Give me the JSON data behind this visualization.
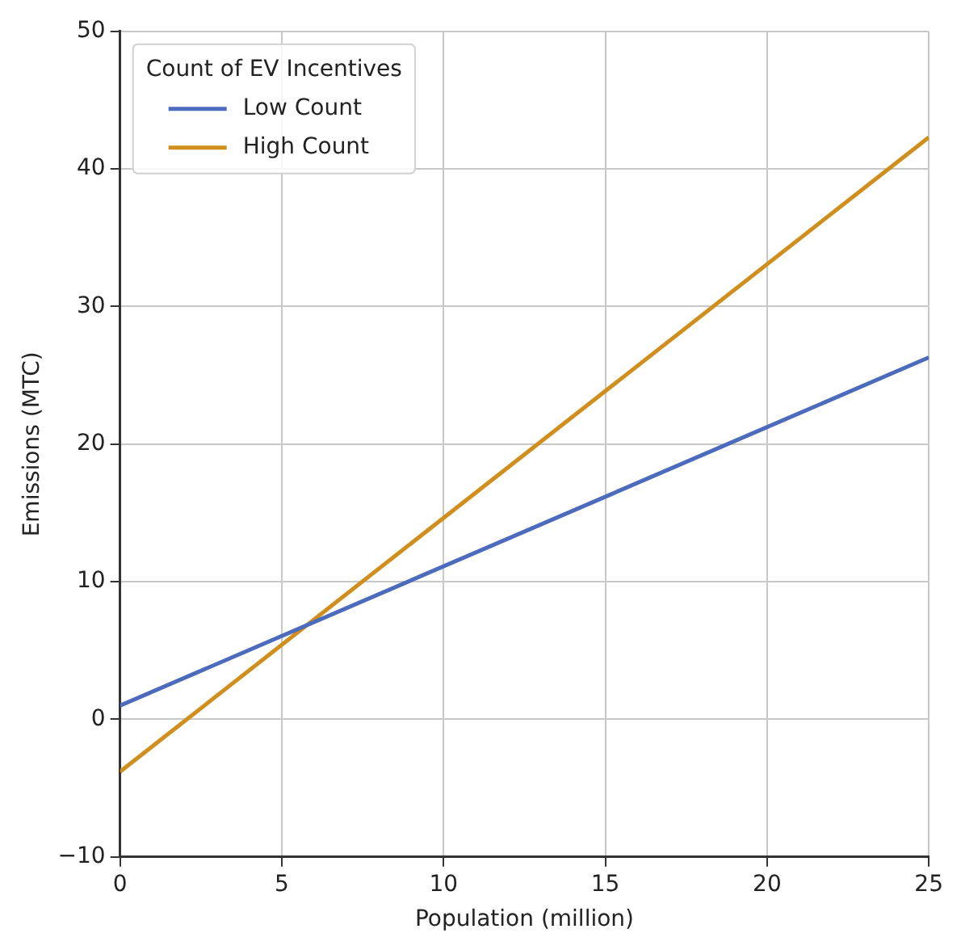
{
  "chart_data": {
    "type": "line",
    "xlabel": "Population (million)",
    "ylabel": "Emissions (MTC)",
    "legend_title": "Count of EV Incentives",
    "x": [
      0,
      25
    ],
    "series": [
      {
        "name": "Low Count",
        "color": "#4c6bbd",
        "values": [
          1.0,
          26.3
        ]
      },
      {
        "name": "High Count",
        "color": "#d08e1c",
        "values": [
          -3.8,
          42.3
        ]
      }
    ],
    "xlim": [
      0,
      25
    ],
    "xticks": [
      0,
      5,
      10,
      15,
      20,
      25
    ],
    "ylim": [
      -10,
      50
    ],
    "yticks": [
      -10,
      0,
      10,
      20,
      30,
      40,
      50
    ],
    "grid": true,
    "legend": "top left",
    "marker": "none",
    "line_style": "solid"
  }
}
